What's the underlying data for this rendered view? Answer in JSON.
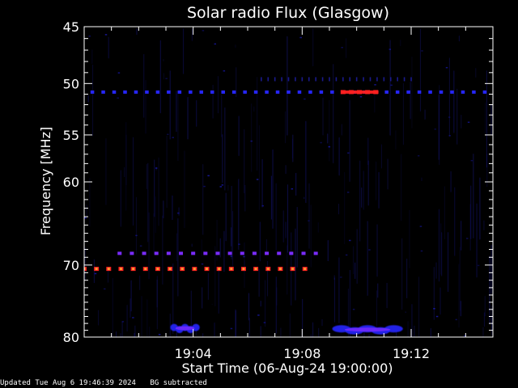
{
  "chart_data": {
    "type": "heatmap",
    "title": "Solar radio Flux (Glasgow)",
    "xlabel": "Start Time (06-Aug-24 19:00:00)",
    "ylabel": "Frequency [MHz]",
    "x_unit": "minutes after 19:00:00",
    "xlim": [
      0,
      15
    ],
    "ylim": [
      45,
      80
    ],
    "y_scale": "log",
    "x_ticks": [
      {
        "value": 4,
        "label": "19:04"
      },
      {
        "value": 8,
        "label": "19:08"
      },
      {
        "value": 12,
        "label": "19:12"
      }
    ],
    "y_ticks": [
      {
        "value": 45,
        "label": "45"
      },
      {
        "value": 50,
        "label": "50"
      },
      {
        "value": 55,
        "label": "55"
      },
      {
        "value": 60,
        "label": "60"
      },
      {
        "value": 70,
        "label": "70"
      },
      {
        "value": 80,
        "label": "80"
      }
    ],
    "colormap": [
      "#000000",
      "#1a1a8c",
      "#2626ff",
      "#7a2cff",
      "#ff2020",
      "#ff9933"
    ],
    "grid": false,
    "features": [
      {
        "name": "RFI line",
        "freq_mhz": 50.8,
        "x_start": 0.3,
        "x_end": 15,
        "dash": 0.4,
        "level": "high"
      },
      {
        "name": "RFI peaks",
        "freq_mhz": 50.8,
        "x_start": 9.5,
        "x_end": 10.8,
        "level": "very high"
      },
      {
        "name": "RFI comb",
        "freq_mhz": 49.6,
        "x_start": 6.5,
        "x_end": 12.0,
        "dash": 0.25,
        "level": "low"
      },
      {
        "name": "RFI line",
        "freq_mhz": 68.5,
        "x_start": 1.3,
        "x_end": 8.5,
        "dash": 0.45,
        "level": "medium"
      },
      {
        "name": "RFI line",
        "freq_mhz": 70.5,
        "x_start": 0.0,
        "x_end": 8.5,
        "dash": 0.45,
        "level": "very high"
      },
      {
        "name": "Burst",
        "freq_mhz": 78.7,
        "x_start": 3.2,
        "x_end": 4.2,
        "level": "medium"
      },
      {
        "name": "Burst",
        "freq_mhz": 78.9,
        "x_start": 9.2,
        "x_end": 11.6,
        "level": "medium"
      }
    ]
  },
  "footer": {
    "updated": "Updated Tue Aug  6 19:46:39 2024",
    "note": "BG subtracted"
  }
}
